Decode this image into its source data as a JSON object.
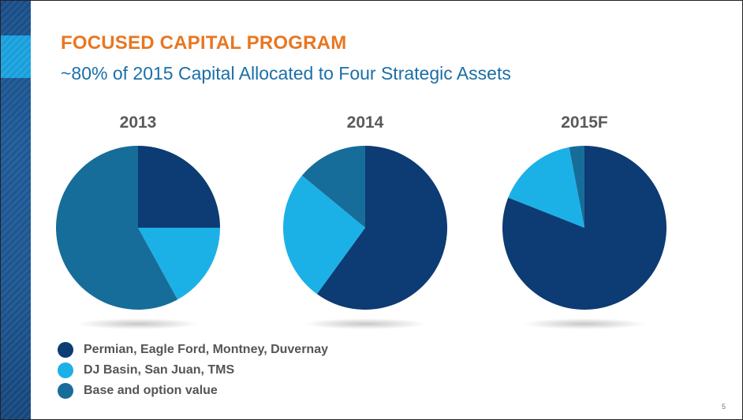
{
  "slide": {
    "title": "FOCUSED CAPITAL PROGRAM",
    "subtitle": "~80% of 2015 Capital Allocated to Four Strategic Assets",
    "page_number": "5"
  },
  "colors": {
    "sidebar": "#1d5691",
    "sidebar_accent": "#1aa3e0",
    "title": "#e87722",
    "subtitle": "#1b6fa8"
  },
  "chart_data": [
    {
      "type": "pie",
      "title": "2013",
      "categories": [
        "Permian, Eagle Ford, Montney, Duvernay",
        "DJ Basin, San Juan, TMS",
        "Base and option value"
      ],
      "values": [
        25,
        17,
        58
      ],
      "colors": [
        "#0d3b73",
        "#1bb1e7",
        "#176d99"
      ]
    },
    {
      "type": "pie",
      "title": "2014",
      "categories": [
        "Permian, Eagle Ford, Montney, Duvernay",
        "DJ Basin, San Juan, TMS",
        "Base and option value"
      ],
      "values": [
        60,
        26,
        14
      ],
      "colors": [
        "#0d3b73",
        "#1bb1e7",
        "#176d99"
      ]
    },
    {
      "type": "pie",
      "title": "2015F",
      "categories": [
        "Permian, Eagle Ford, Montney, Duvernay",
        "DJ Basin, San Juan, TMS",
        "Base and option value"
      ],
      "values": [
        81,
        16,
        3
      ],
      "colors": [
        "#0d3b73",
        "#1bb1e7",
        "#176d99"
      ]
    }
  ],
  "legend": [
    {
      "label": "Permian, Eagle Ford, Montney, Duvernay",
      "color": "#0d3b73"
    },
    {
      "label": "DJ Basin, San Juan, TMS",
      "color": "#1bb1e7"
    },
    {
      "label": "Base and option value",
      "color": "#176d99"
    }
  ]
}
